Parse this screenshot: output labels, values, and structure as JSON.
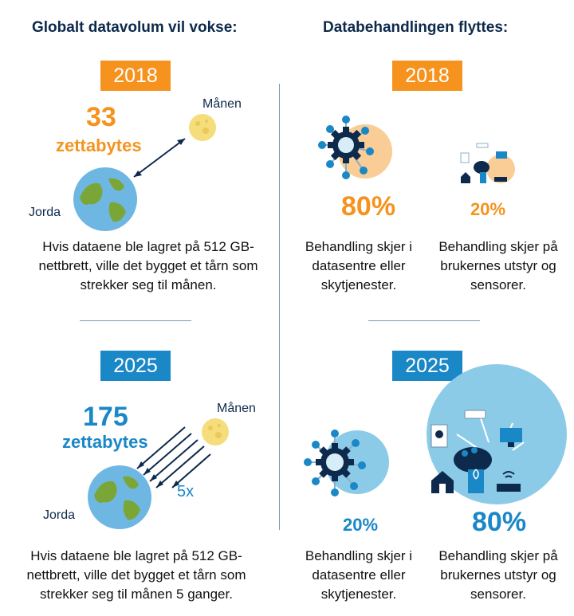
{
  "left": {
    "heading": "Globalt datavolum vil vokse:",
    "panel_2018": {
      "year": "2018",
      "amount": "33",
      "unit": "zettabytes",
      "moon_label": "Månen",
      "earth_label": "Jorda",
      "description": "Hvis dataene ble lagret på 512 GB-nettbrett, ville det bygget et tårn som strekker seg til månen."
    },
    "panel_2025": {
      "year": "2025",
      "amount": "175",
      "unit": "zettabytes",
      "moon_label": "Månen",
      "earth_label": "Jorda",
      "multiplier": "5x",
      "description": "Hvis dataene ble lagret på 512 GB-nettbrett, ville det bygget et tårn som strekker seg til månen 5 ganger."
    }
  },
  "right": {
    "heading": "Databehandlingen flyttes:",
    "panel_2018": {
      "year": "2018",
      "datacenter_percent": "80%",
      "edge_percent": "20%",
      "datacenter_text": "Behandling skjer i datasentre eller skytjenester.",
      "edge_text": "Behandling skjer på brukernes utstyr og sensorer."
    },
    "panel_2025": {
      "year": "2025",
      "datacenter_percent": "20%",
      "edge_percent": "80%",
      "datacenter_text": "Behandling skjer i datasentre eller skytjenester.",
      "edge_text": "Behandling skjer på brukernes utstyr og sensorer."
    }
  },
  "colors": {
    "orange": "#f5931e",
    "blue": "#1a87c6",
    "light_orange": "#f9cd95",
    "light_blue": "#8ccbe8",
    "navy": "#0d2a4c"
  }
}
